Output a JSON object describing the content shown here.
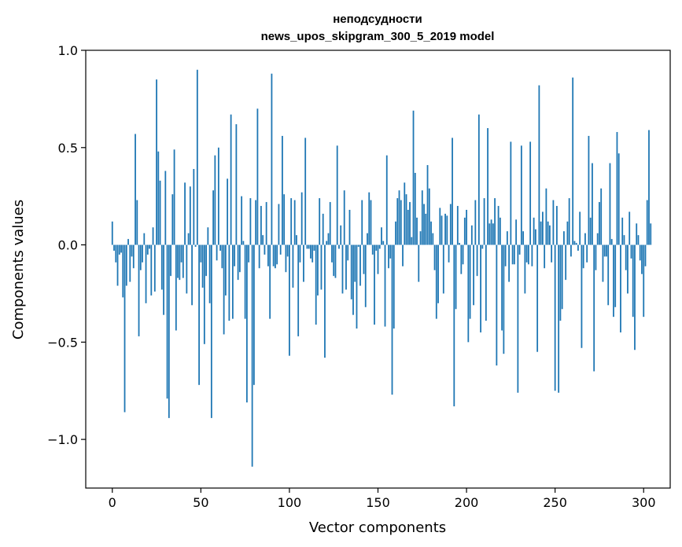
{
  "chart_data": {
    "type": "bar",
    "title": "неподсудности",
    "subtitle": "news_upos_skipgram_300_5_2019 model",
    "xlabel": "Vector components",
    "ylabel": "Components values",
    "xlim": [
      -15,
      315
    ],
    "ylim": [
      -1.25,
      1.0
    ],
    "xticks": [
      0,
      50,
      100,
      150,
      200,
      250,
      300
    ],
    "xtick_labels": [
      "0",
      "50",
      "100",
      "150",
      "200",
      "250",
      "300"
    ],
    "yticks": [
      -1.0,
      -0.5,
      0.0,
      0.5,
      1.0
    ],
    "ytick_labels": [
      "−1.0",
      "−0.5",
      "0.0",
      "0.5",
      "1.0"
    ],
    "grid": false,
    "bar_color": "#1f77b4",
    "series": [
      {
        "values": [
          0.12,
          -0.03,
          -0.09,
          -0.21,
          -0.05,
          -0.04,
          -0.27,
          -0.86,
          -0.21,
          0.03,
          -0.19,
          -0.06,
          -0.12,
          0.57,
          0.23,
          -0.47,
          -0.13,
          -0.09,
          0.06,
          -0.3,
          -0.05,
          -0.02,
          -0.26,
          0.09,
          -0.24,
          0.85,
          0.48,
          0.33,
          -0.23,
          -0.36,
          0.38,
          -0.79,
          -0.89,
          -0.16,
          0.26,
          0.49,
          -0.44,
          -0.17,
          -0.18,
          -0.09,
          -0.17,
          0.32,
          -0.25,
          0.06,
          0.3,
          -0.31,
          0.39,
          -0.01,
          0.9,
          -0.72,
          -0.09,
          -0.22,
          -0.51,
          -0.16,
          0.09,
          -0.3,
          -0.89,
          0.28,
          0.46,
          -0.08,
          0.5,
          -0.03,
          -0.12,
          -0.46,
          -0.26,
          0.34,
          -0.39,
          0.67,
          -0.38,
          -0.11,
          0.62,
          -0.18,
          -0.14,
          0.25,
          0.02,
          -0.38,
          -0.81,
          -0.09,
          0.24,
          -1.14,
          -0.72,
          0.23,
          0.7,
          -0.12,
          0.2,
          0.05,
          -0.05,
          0.22,
          -0.11,
          -0.38,
          0.88,
          -0.11,
          -0.12,
          -0.1,
          0.21,
          -0.05,
          0.56,
          0.26,
          -0.14,
          -0.06,
          -0.57,
          0.24,
          -0.22,
          0.23,
          0.05,
          -0.47,
          -0.09,
          0.27,
          -0.19,
          0.55,
          -0.02,
          -0.02,
          -0.07,
          -0.09,
          -0.03,
          -0.41,
          -0.26,
          0.24,
          -0.23,
          0.16,
          -0.58,
          0.02,
          0.06,
          0.22,
          -0.09,
          -0.16,
          -0.17,
          0.51,
          -0.02,
          0.1,
          -0.25,
          0.28,
          -0.23,
          -0.08,
          0.18,
          -0.28,
          -0.36,
          -0.19,
          -0.43,
          -0.01,
          -0.21,
          0.23,
          -0.15,
          -0.32,
          0.06,
          0.27,
          0.23,
          -0.05,
          -0.41,
          -0.03,
          -0.15,
          -0.02,
          0.09,
          0.02,
          -0.42,
          0.46,
          -0.12,
          -0.07,
          -0.77,
          -0.43,
          0.12,
          0.24,
          0.28,
          0.23,
          -0.11,
          0.32,
          0.26,
          0.18,
          0.22,
          0.04,
          0.69,
          0.37,
          0.14,
          -0.19,
          0.07,
          0.28,
          0.21,
          0.16,
          0.41,
          0.29,
          0.12,
          0.06,
          -0.13,
          -0.38,
          -0.3,
          0.19,
          0.15,
          -0.25,
          0.16,
          0.15,
          -0.09,
          0.21,
          0.55,
          -0.83,
          -0.33,
          0.2,
          0.01,
          -0.15,
          -0.1,
          0.14,
          0.18,
          -0.5,
          -0.38,
          0.1,
          -0.31,
          0.23,
          -0.16,
          0.67,
          -0.45,
          -0.02,
          0.24,
          -0.39,
          0.6,
          0.11,
          0.13,
          0.11,
          0.24,
          -0.62,
          0.2,
          0.14,
          -0.44,
          -0.56,
          -0.11,
          0.07,
          -0.19,
          0.53,
          -0.1,
          -0.1,
          0.13,
          -0.76,
          -0.05,
          0.51,
          0.07,
          -0.25,
          -0.09,
          -0.1,
          0.53,
          -0.11,
          0.14,
          0.08,
          -0.55,
          0.82,
          0.12,
          0.17,
          -0.12,
          0.29,
          0.12,
          0.1,
          -0.09,
          0.23,
          -0.75,
          0.2,
          -0.76,
          -0.39,
          -0.33,
          0.07,
          -0.18,
          0.12,
          0.24,
          -0.06,
          0.86,
          0.02,
          0.01,
          -0.03,
          0.17,
          -0.53,
          -0.12,
          0.06,
          -0.09,
          0.56,
          0.14,
          0.42,
          -0.65,
          -0.13,
          0.06,
          0.22,
          0.29,
          -0.19,
          -0.06,
          -0.06,
          -0.31,
          0.42,
          0.03,
          -0.37,
          -0.32,
          0.58,
          0.47,
          -0.45,
          0.14,
          0.05,
          -0.13,
          -0.25,
          0.17,
          -0.07,
          -0.37,
          -0.54,
          0.11,
          0.05,
          -0.08,
          -0.15,
          -0.37,
          -0.11,
          0.23,
          0.59,
          0.11
        ]
      }
    ]
  }
}
